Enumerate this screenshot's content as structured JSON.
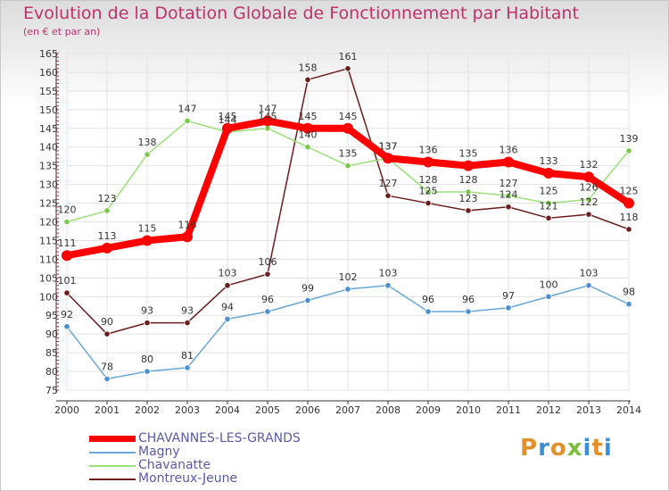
{
  "title": "Evolution de la Dotation Globale de Fonctionnement par Habitant",
  "subtitle": "(en € et par an)",
  "logo": {
    "text": "Proxiti",
    "colors": [
      "#e2902a",
      "#3a8fd8",
      "#e2902a",
      "#7cbf3a",
      "#3a8fd8",
      "#e2902a",
      "#3a8fd8"
    ]
  },
  "chart_data": {
    "type": "line",
    "title": "Evolution de la Dotation Globale de Fonctionnement par Habitant",
    "subtitle": "(en € et par an)",
    "xlabel": "",
    "ylabel": "",
    "ylim": [
      75,
      165
    ],
    "yticks": [
      75,
      80,
      85,
      90,
      95,
      100,
      105,
      110,
      115,
      120,
      125,
      130,
      135,
      140,
      145,
      150,
      155,
      160,
      165
    ],
    "grid": true,
    "legend_position": "bottom-left",
    "categories": [
      "2000",
      "2001",
      "2002",
      "2003",
      "2004",
      "2005",
      "2006",
      "2007",
      "2008",
      "2009",
      "2010",
      "2011",
      "2012",
      "2013",
      "2014"
    ],
    "series": [
      {
        "name": "Montreux-Jeune",
        "color": "#6b1d1d",
        "marker_fill": "#6b1d1d",
        "values": [
          101,
          90,
          93,
          93,
          103,
          106,
          158,
          161,
          127,
          125,
          123,
          124,
          121,
          122,
          118
        ],
        "labels": [
          "101",
          "90",
          "93",
          "93",
          "103",
          "106",
          "158",
          "161",
          "127",
          "125",
          "123",
          "124",
          "121",
          "122",
          "118"
        ]
      },
      {
        "name": "Chavanatte",
        "color": "#99e07a",
        "marker_fill": "#7cc64c",
        "values": [
          120,
          123,
          138,
          147,
          144,
          145,
          140,
          135,
          137,
          128,
          128,
          127,
          125,
          126,
          139
        ],
        "labels": [
          "120",
          "123",
          "138",
          "147",
          "144",
          "145",
          "140",
          "135",
          "137",
          "128",
          "128",
          "127",
          "125",
          "126",
          "139"
        ]
      },
      {
        "name": "Magny",
        "color": "#6aa6d6",
        "marker_fill": "#4a90cf",
        "values": [
          92,
          78,
          80,
          81,
          94,
          96,
          99,
          102,
          103,
          96,
          96,
          97,
          100,
          103,
          98
        ],
        "labels": [
          "92",
          "78",
          "80",
          "81",
          "94",
          "96",
          "99",
          "102",
          "103",
          "96",
          "96",
          "97",
          "100",
          "103",
          "98"
        ]
      },
      {
        "name": "CHAVANNES-LES-GRANDS",
        "color": "#ff0000",
        "marker_fill": "#ff0000",
        "values": [
          111,
          113,
          115,
          116,
          145,
          147,
          145,
          145,
          137,
          136,
          135,
          136,
          133,
          132,
          125
        ],
        "labels": [
          "111",
          "113",
          "115",
          "116",
          "145",
          "147",
          "145",
          "145",
          "137",
          "136",
          "135",
          "136",
          "133",
          "132",
          "125"
        ]
      }
    ]
  },
  "legend": [
    {
      "name": "CHAVANNES-LES-GRANDS",
      "color": "#ff0000"
    },
    {
      "name": "Magny",
      "color": "#6aa6d6"
    },
    {
      "name": "Chavanatte",
      "color": "#99e07a"
    },
    {
      "name": "Montreux-Jeune",
      "color": "#6b1d1d"
    }
  ]
}
